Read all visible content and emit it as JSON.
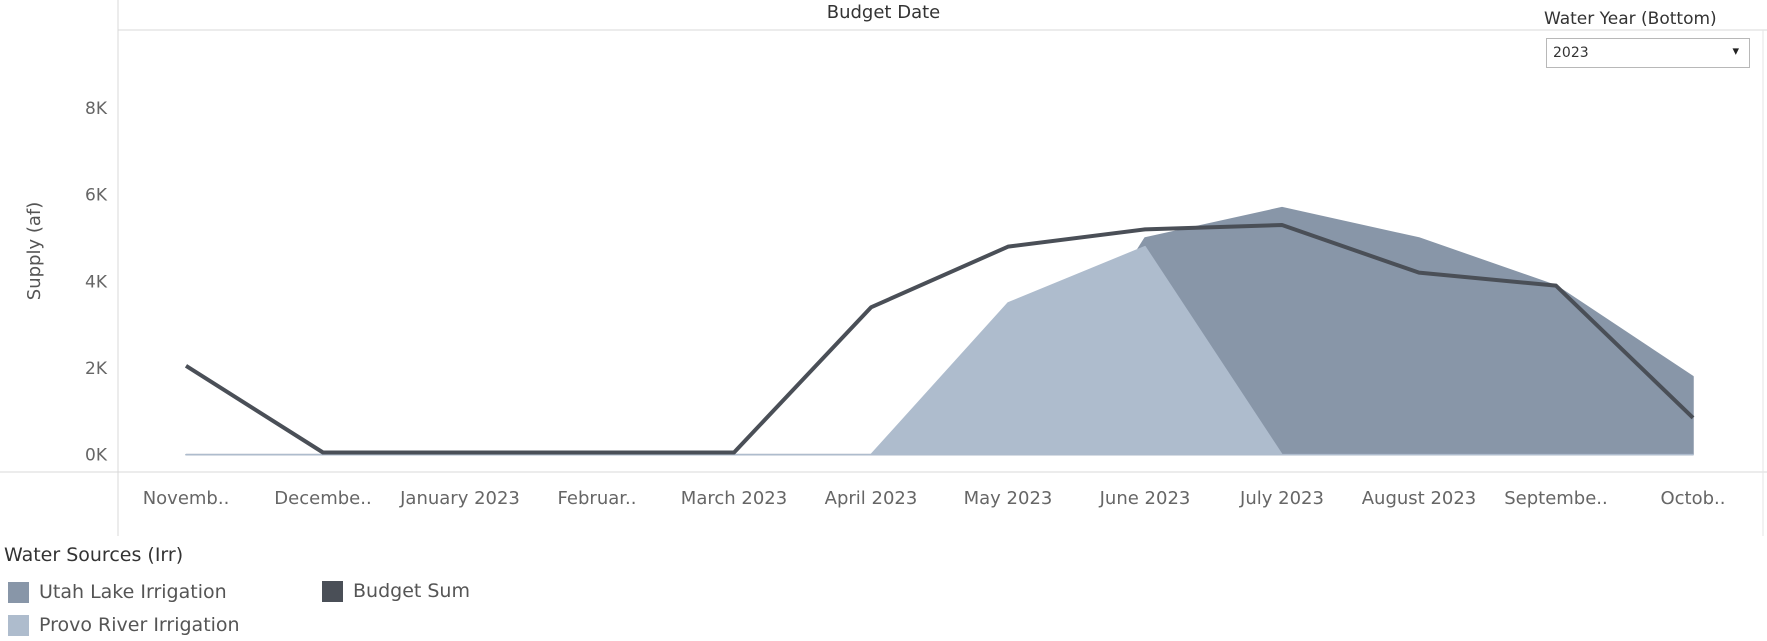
{
  "chart_data": {
    "type": "area",
    "title": "Budget Date",
    "xlabel": "",
    "ylabel": "Supply (af)",
    "categories": [
      "Novemb..",
      "Decembe..",
      "January 2023",
      "Februar..",
      "March 2023",
      "April 2023",
      "May 2023",
      "June 2023",
      "July 2023",
      "August 2023",
      "Septembe..",
      "Octob.."
    ],
    "y_ticks": [
      "0K",
      "2K",
      "4K",
      "6K",
      "8K"
    ],
    "y_tick_values": [
      0,
      2000,
      4000,
      6000,
      8000
    ],
    "ylim": [
      -400,
      9800
    ],
    "grid": false,
    "legend_placement": "bottom-left",
    "series": [
      {
        "name": "Utah Lake Irrigation",
        "kind": "area",
        "color": "#8896a8",
        "values": [
          0,
          0,
          0,
          0,
          0,
          0,
          0,
          5000,
          5700,
          5000,
          3900,
          1800
        ]
      },
      {
        "name": "Provo River Irrigation",
        "kind": "area",
        "color": "#aebccd",
        "values": [
          0,
          0,
          0,
          0,
          0,
          0,
          3500,
          4800,
          0,
          0,
          0,
          0
        ]
      },
      {
        "name": "Budget Sum",
        "kind": "line",
        "color": "#4a4f57",
        "values": [
          2050,
          50,
          50,
          50,
          50,
          3400,
          4800,
          5200,
          5300,
          4200,
          3900,
          850
        ]
      }
    ]
  },
  "legend": {
    "title": "Water Sources (Irr)",
    "items": [
      {
        "label": "Utah Lake Irrigation",
        "color": "#8896a8"
      },
      {
        "label": "Provo River Irrigation",
        "color": "#aebccd"
      },
      {
        "label": "Budget Sum",
        "color": "#4a4f57"
      }
    ]
  },
  "filter": {
    "label": "Water Year (Bottom)",
    "value": "2023",
    "arrow_icon": "▾"
  }
}
